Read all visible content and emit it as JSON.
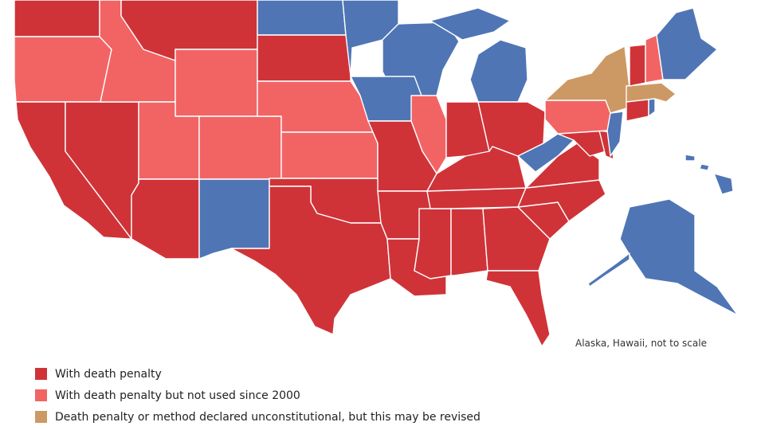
{
  "scale_note": "Alaska, Hawaii, not to scale",
  "colors": {
    "death_penalty": "#cf3338",
    "not_used": "#f26464",
    "unconstitutional": "#cc9964",
    "abolished": "#4f75b5"
  },
  "legend": [
    {
      "key": "death_penalty",
      "label": "With death penalty",
      "color": "#cf3338"
    },
    {
      "key": "not_used",
      "label": "With death penalty but not used since 2000",
      "color": "#f26464"
    },
    {
      "key": "unconstitutional",
      "label": "Death penalty or method declared unconstitutional, but this may be revised",
      "color": "#cc9964"
    },
    {
      "key": "abolished",
      "label": "",
      "color": "#4f75b5"
    }
  ],
  "states": [
    {
      "name": "Washington",
      "status": "death_penalty"
    },
    {
      "name": "Oregon",
      "status": "not_used"
    },
    {
      "name": "California",
      "status": "death_penalty"
    },
    {
      "name": "Nevada",
      "status": "death_penalty"
    },
    {
      "name": "Idaho",
      "status": "not_used"
    },
    {
      "name": "Montana",
      "status": "death_penalty"
    },
    {
      "name": "Wyoming",
      "status": "not_used"
    },
    {
      "name": "Utah",
      "status": "not_used"
    },
    {
      "name": "Colorado",
      "status": "not_used"
    },
    {
      "name": "Arizona",
      "status": "death_penalty"
    },
    {
      "name": "New Mexico",
      "status": "abolished"
    },
    {
      "name": "North Dakota",
      "status": "abolished"
    },
    {
      "name": "South Dakota",
      "status": "death_penalty"
    },
    {
      "name": "Nebraska",
      "status": "not_used"
    },
    {
      "name": "Kansas",
      "status": "not_used"
    },
    {
      "name": "Oklahoma",
      "status": "death_penalty"
    },
    {
      "name": "Texas",
      "status": "death_penalty"
    },
    {
      "name": "Minnesota",
      "status": "abolished"
    },
    {
      "name": "Iowa",
      "status": "abolished"
    },
    {
      "name": "Missouri",
      "status": "death_penalty"
    },
    {
      "name": "Arkansas",
      "status": "death_penalty"
    },
    {
      "name": "Louisiana",
      "status": "death_penalty"
    },
    {
      "name": "Wisconsin",
      "status": "abolished"
    },
    {
      "name": "Illinois",
      "status": "not_used"
    },
    {
      "name": "Michigan",
      "status": "abolished"
    },
    {
      "name": "Indiana",
      "status": "death_penalty"
    },
    {
      "name": "Ohio",
      "status": "death_penalty"
    },
    {
      "name": "Kentucky",
      "status": "death_penalty"
    },
    {
      "name": "Tennessee",
      "status": "death_penalty"
    },
    {
      "name": "Mississippi",
      "status": "death_penalty"
    },
    {
      "name": "Alabama",
      "status": "death_penalty"
    },
    {
      "name": "Georgia",
      "status": "death_penalty"
    },
    {
      "name": "Florida",
      "status": "death_penalty"
    },
    {
      "name": "South Carolina",
      "status": "death_penalty"
    },
    {
      "name": "North Carolina",
      "status": "death_penalty"
    },
    {
      "name": "Virginia",
      "status": "death_penalty"
    },
    {
      "name": "West Virginia",
      "status": "abolished"
    },
    {
      "name": "Maryland",
      "status": "death_penalty"
    },
    {
      "name": "Delaware",
      "status": "death_penalty"
    },
    {
      "name": "Pennsylvania",
      "status": "not_used"
    },
    {
      "name": "New Jersey",
      "status": "abolished"
    },
    {
      "name": "New York",
      "status": "unconstitutional"
    },
    {
      "name": "Connecticut",
      "status": "death_penalty"
    },
    {
      "name": "Rhode Island",
      "status": "abolished"
    },
    {
      "name": "Massachusetts",
      "status": "unconstitutional"
    },
    {
      "name": "Vermont",
      "status": "death_penalty"
    },
    {
      "name": "New Hampshire",
      "status": "not_used"
    },
    {
      "name": "Maine",
      "status": "abolished"
    },
    {
      "name": "Alaska",
      "status": "abolished"
    },
    {
      "name": "Hawaii",
      "status": "abolished"
    }
  ]
}
